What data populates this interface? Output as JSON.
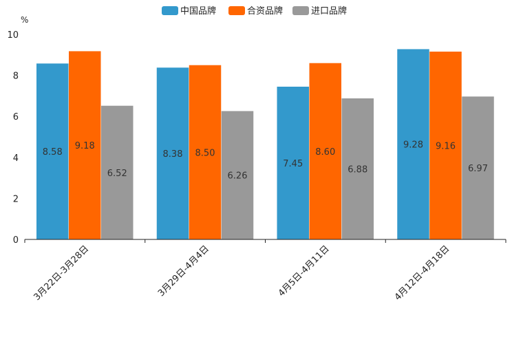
{
  "chart_data": {
    "type": "bar",
    "title": "",
    "ylabel": "%",
    "xlabel": "",
    "ylim": [
      0,
      10
    ],
    "yticks": [
      0,
      2,
      4,
      6,
      8,
      10
    ],
    "categories": [
      "3月22日-3月28日",
      "3月29日-4月4日",
      "4月5日-4月11日",
      "4月12日-4月18日"
    ],
    "series": [
      {
        "name": "中国品牌",
        "color": "#3399cc",
        "values": [
          8.58,
          8.38,
          7.45,
          9.28
        ]
      },
      {
        "name": "合资品牌",
        "color": "#ff6600",
        "values": [
          9.18,
          8.5,
          8.6,
          9.16
        ]
      },
      {
        "name": "进口品牌",
        "color": "#999999",
        "values": [
          6.52,
          6.26,
          6.88,
          6.97
        ]
      }
    ],
    "legend": "top-center",
    "grid": false
  }
}
